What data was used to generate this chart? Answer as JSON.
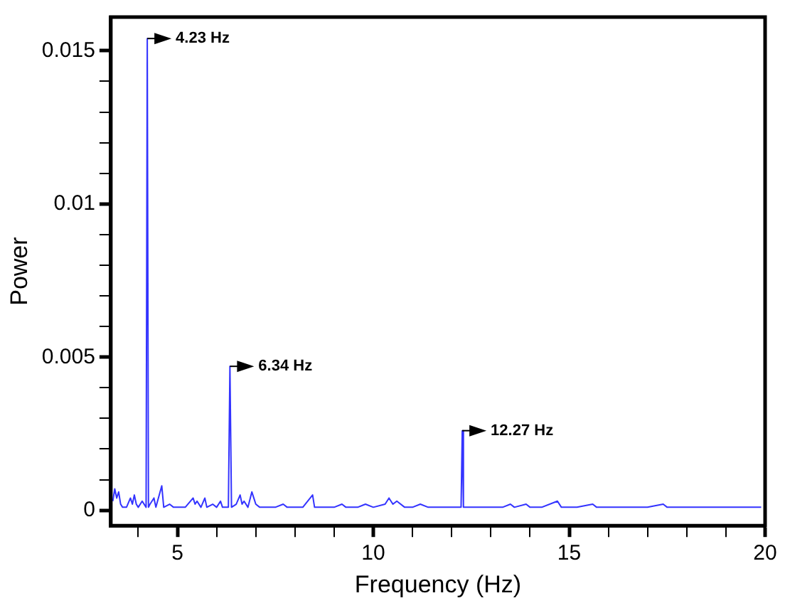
{
  "chart_data": {
    "type": "line",
    "xlabel": "Frequency (Hz)",
    "ylabel": "Power",
    "series": [
      {
        "color": "#3333ff",
        "x": [
          3.35,
          3.4,
          3.45,
          3.5,
          3.55,
          3.6,
          3.7,
          3.8,
          3.85,
          3.9,
          3.95,
          4.0,
          4.1,
          4.2,
          4.23,
          4.26,
          4.3,
          4.4,
          4.45,
          4.6,
          4.65,
          4.8,
          4.9,
          5.0,
          5.1,
          5.2,
          5.4,
          5.45,
          5.5,
          5.6,
          5.7,
          5.75,
          5.9,
          6.0,
          6.1,
          6.15,
          6.3,
          6.34,
          6.38,
          6.5,
          6.6,
          6.65,
          6.7,
          6.8,
          6.9,
          6.95,
          7.0,
          7.1,
          7.3,
          7.5,
          7.7,
          7.8,
          8.0,
          8.2,
          8.45,
          8.5,
          8.8,
          9.0,
          9.2,
          9.3,
          9.6,
          9.8,
          10.0,
          10.3,
          10.4,
          10.5,
          10.6,
          10.8,
          11.0,
          11.2,
          11.4,
          11.6,
          12.0,
          12.24,
          12.27,
          12.3,
          12.6,
          13.0,
          13.3,
          13.5,
          13.6,
          13.9,
          14.0,
          14.3,
          14.7,
          14.8,
          15.2,
          15.6,
          15.7,
          16.2,
          16.6,
          17.0,
          17.4,
          17.5,
          18.0,
          18.5,
          19.0,
          19.5,
          19.9
        ],
        "values": [
          0.0003,
          0.0007,
          0.0004,
          0.0006,
          0.0002,
          0.0001,
          0.0001,
          0.0004,
          0.0002,
          0.0005,
          0.0002,
          0.0001,
          0.0003,
          0.0001,
          0.0154,
          0.0001,
          0.0002,
          0.0004,
          0.0001,
          0.0008,
          0.0001,
          0.0002,
          0.0001,
          0.0001,
          0.0001,
          0.0001,
          0.0004,
          0.0002,
          0.0003,
          0.0001,
          0.0004,
          0.0001,
          0.0002,
          0.0001,
          0.0003,
          0.0001,
          0.0001,
          0.0047,
          0.0001,
          0.0002,
          0.0005,
          0.0002,
          0.0003,
          0.0001,
          0.0006,
          0.0004,
          0.0002,
          0.0001,
          0.0001,
          0.0001,
          0.0002,
          0.0001,
          0.0001,
          0.0001,
          0.0005,
          0.0001,
          0.0001,
          0.0001,
          0.0002,
          0.0001,
          0.0001,
          0.0002,
          0.0001,
          0.0002,
          0.0004,
          0.0002,
          0.0003,
          0.0001,
          0.0001,
          0.0002,
          0.0001,
          0.0001,
          0.0001,
          0.0001,
          0.0026,
          0.0001,
          0.0001,
          0.0001,
          0.0001,
          0.0002,
          0.0001,
          0.0002,
          0.0001,
          0.0001,
          0.0003,
          0.0001,
          0.0001,
          0.0002,
          0.0001,
          0.0001,
          0.0001,
          0.0001,
          0.0002,
          0.0001,
          0.0001,
          0.0001,
          0.0001,
          0.0001,
          0.0001
        ]
      }
    ],
    "xlim": [
      3.3,
      20
    ],
    "xticks": [
      {
        "value": 4,
        "label": null
      },
      5,
      {
        "value": 6,
        "label": null
      },
      {
        "value": 7,
        "label": null
      },
      {
        "value": 8,
        "label": null
      },
      {
        "value": 9,
        "label": null
      },
      10,
      {
        "value": 11,
        "label": null
      },
      {
        "value": 12,
        "label": null
      },
      {
        "value": 13,
        "label": null
      },
      {
        "value": 14,
        "label": null
      },
      15,
      {
        "value": 16,
        "label": null
      },
      {
        "value": 17,
        "label": null
      },
      {
        "value": 18,
        "label": null
      },
      {
        "value": 19,
        "label": null
      },
      20
    ],
    "ylim": [
      -0.0005,
      0.0161
    ],
    "yticks": [
      0,
      {
        "value": 0.001,
        "label": null
      },
      {
        "value": 0.002,
        "label": null
      },
      {
        "value": 0.003,
        "label": null
      },
      {
        "value": 0.004,
        "label": null
      },
      0.005,
      {
        "value": 0.006,
        "label": null
      },
      {
        "value": 0.007,
        "label": null
      },
      {
        "value": 0.008,
        "label": null
      },
      {
        "value": 0.009,
        "label": null
      },
      0.01,
      {
        "value": 0.011,
        "label": null
      },
      {
        "value": 0.012,
        "label": null
      },
      {
        "value": 0.013,
        "label": null
      },
      {
        "value": 0.014,
        "label": null
      },
      0.015
    ],
    "annotations": [
      {
        "text": "4.23 Hz",
        "x": 4.23,
        "y": 0.0154
      },
      {
        "text": "6.34 Hz",
        "x": 6.34,
        "y": 0.0047
      },
      {
        "text": "12.27 Hz",
        "x": 12.27,
        "y": 0.0026
      }
    ],
    "grid": false,
    "legend": false,
    "marker": "none",
    "line_style": "solid"
  }
}
